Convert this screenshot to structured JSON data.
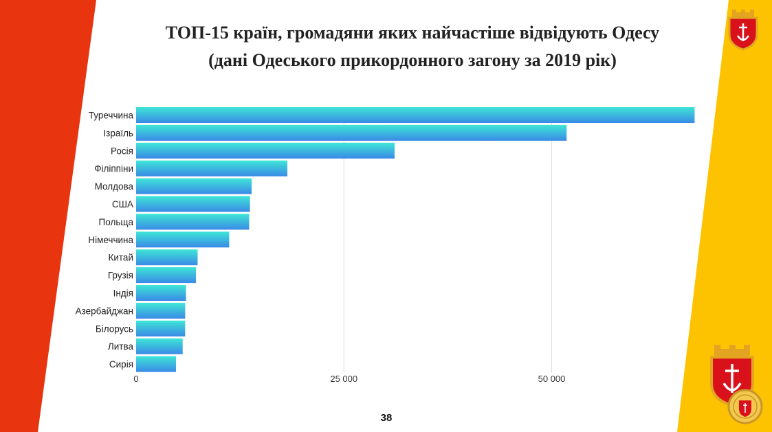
{
  "slide": {
    "title_line1": "ТОП-15 країн, громадяни яких найчастіше відвідують Одесу",
    "title_line2": "(дані Одеського прикордонного загону за 2019 рік)",
    "page_number": "38"
  },
  "colors": {
    "left_band": "#E8340F",
    "right_band": "#FDC300",
    "bar_top": "#3EE6D6",
    "bar_bottom": "#3A8AE6",
    "grid": "#DDDDDD",
    "emblem_red": "#D9111A",
    "emblem_gold": "#E3A521"
  },
  "emblems": [
    "odesa-coat-of-arms-icon",
    "odesa-coat-of-arms-icon",
    "odesa-seal-icon"
  ],
  "chart_data": {
    "type": "bar",
    "orientation": "horizontal",
    "title": "ТОП-15 країн, громадяни яких найчастіше відвідують Одесу",
    "subtitle": "(дані Одеського прикордонного загону за 2019 рік)",
    "xlabel": "",
    "ylabel": "",
    "xlim": [
      0,
      67000
    ],
    "xticks": [
      0,
      25000,
      50000
    ],
    "xtick_labels": [
      "0",
      "25 000",
      "50 000"
    ],
    "grid": true,
    "legend": "none",
    "categories": [
      "Туреччина",
      "Ізраїль",
      "Росія",
      "Філіппіни",
      "Молдова",
      "США",
      "Польща",
      "Німеччина",
      "Китай",
      "Грузія",
      "Індія",
      "Азербайджан",
      "Білорусь",
      "Литва",
      "Сирія"
    ],
    "values": [
      67200,
      51800,
      31100,
      18200,
      13900,
      13700,
      13600,
      11200,
      7400,
      7200,
      6000,
      5900,
      5900,
      5600,
      4800
    ]
  }
}
